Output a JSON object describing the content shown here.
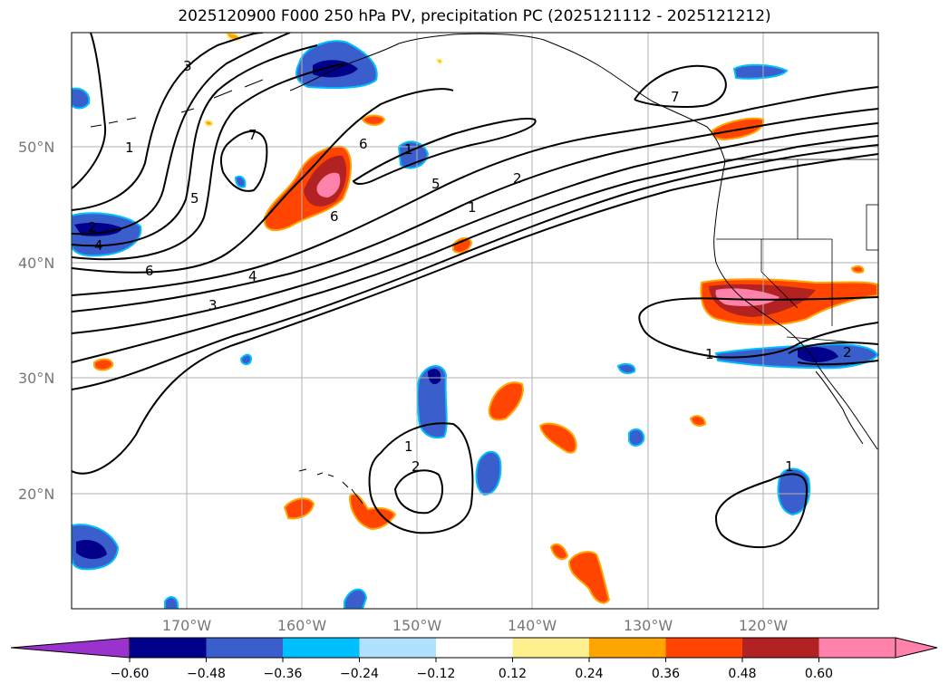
{
  "title": "2025120900 F000 250 hPa PV, precipitation PC (2025121112 - 2025121212)",
  "map": {
    "latitudes": [
      "50°N",
      "40°N",
      "30°N",
      "20°N"
    ],
    "longitudes": [
      "170°W",
      "160°W",
      "150°W",
      "140°W",
      "130°W",
      "120°W"
    ],
    "lat_range": [
      10,
      60
    ],
    "lon_range": [
      -180,
      -110
    ]
  },
  "contour_labels": [
    "3",
    "1",
    "7",
    "5",
    "6",
    "2",
    "4",
    "6",
    "1",
    "5",
    "2",
    "4",
    "3",
    "6",
    "1",
    "7",
    "1",
    "2",
    "1",
    "2",
    "1"
  ],
  "colorbar": {
    "ticks": [
      "−0.60",
      "−0.48",
      "−0.36",
      "−0.24",
      "−0.12",
      "0.12",
      "0.24",
      "0.36",
      "0.48",
      "0.60"
    ],
    "colors": [
      "#9a32cd",
      "#00008b",
      "#3a5fcd",
      "#00bfff",
      "#b0e2ff",
      "#ffffff",
      "#fff08f",
      "#ffa500",
      "#ff4500",
      "#b22222",
      "#ff82ab",
      "#ff82ab"
    ]
  }
}
